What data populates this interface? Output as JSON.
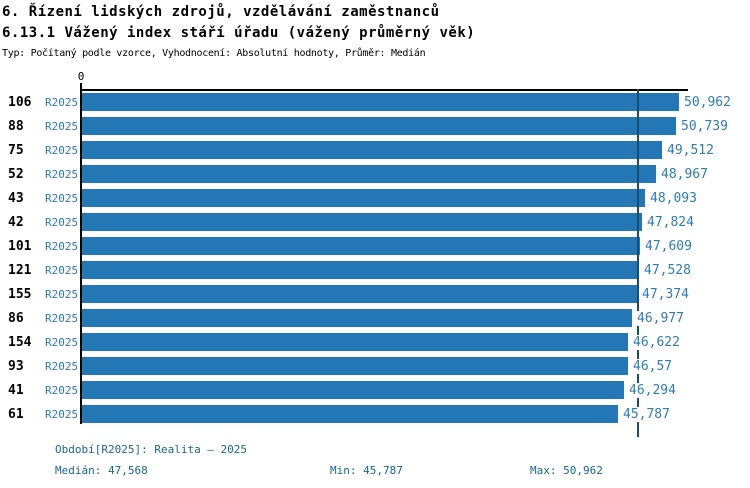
{
  "title": "6. Řízení lidských zdrojů, vzdělávání zaměstnanců",
  "subtitle": "6.13.1 Vážený index stáří úřadu (vážený průměrný věk)",
  "meta_line": "Typ: Počítaný podle vzorce, Vyhodnocení: Absolutní hodnoty, Průměr: Medián",
  "axis": {
    "zero_label": "0"
  },
  "colors": {
    "bar": "#2277b4",
    "label_blue": "#2e7cb5",
    "footer_teal": "#17678f",
    "median_line": "#174f73",
    "axis": "#000000"
  },
  "chart_data": {
    "type": "bar",
    "orientation": "horizontal",
    "title": "6.13.1 Vážený index stáří úřadu (vážený průměrný věk)",
    "categories": [
      "106",
      "88",
      "75",
      "52",
      "43",
      "42",
      "101",
      "121",
      "155",
      "86",
      "154",
      "93",
      "41",
      "61"
    ],
    "series": [
      {
        "name": "R2025",
        "values": [
          50.962,
          50.739,
          49.512,
          48.967,
          48.093,
          47.824,
          47.609,
          47.528,
          47.374,
          46.977,
          46.622,
          46.57,
          46.294,
          45.787
        ]
      }
    ],
    "value_labels": [
      "50,962",
      "50,739",
      "49,512",
      "48,967",
      "48,093",
      "47,824",
      "47,609",
      "47,528",
      "47,374",
      "46,977",
      "46,622",
      "46,57",
      "46,294",
      "45,787"
    ],
    "series_row_label": "R2025",
    "xlim": [
      0,
      51.9
    ],
    "grid": false,
    "legend": false,
    "median": 47.568,
    "min": 45.787,
    "max": 50.962
  },
  "footer": {
    "period_line": "Období[R2025]: Realita – 2025",
    "median": "Medián: 47,568",
    "min": "Min: 45,787",
    "max": "Max: 50,962"
  }
}
